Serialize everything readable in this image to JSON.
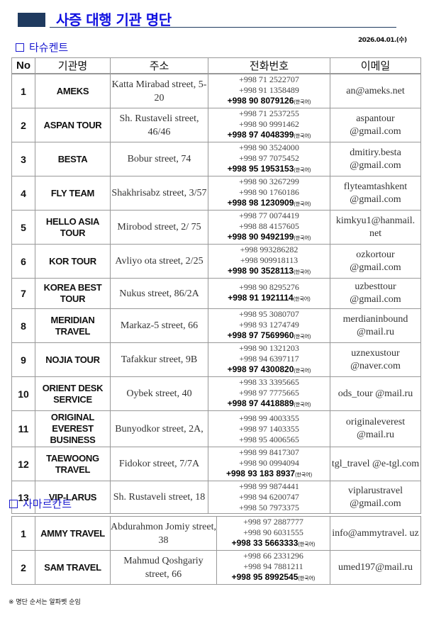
{
  "title": "사증 대행 기관 명단",
  "date": "2026.04.01.(수)",
  "headers": [
    "No",
    "기관명",
    "주소",
    "전화번호",
    "이메일"
  ],
  "korean_suffix": "(한국어)",
  "sections": [
    {
      "name": "타슈켄트",
      "rows": [
        {
          "no": "1",
          "name": "AMEKS",
          "address": "Katta Mirabad street, 5-20",
          "phones": [
            {
              "n": "+998 71 2522707"
            },
            {
              "n": "+998 91 1358489"
            },
            {
              "n": "+998 90 8079126",
              "korean": true
            }
          ],
          "email": "an@ameks.net"
        },
        {
          "no": "2",
          "name": "ASPAN TOUR",
          "address": "Sh. Rustaveli street, 46/46",
          "phones": [
            {
              "n": "+998 71 2537255"
            },
            {
              "n": "+998 90 9991462"
            },
            {
              "n": "+998 97 4048399",
              "korean": true
            }
          ],
          "email": "aspantour @gmail.com"
        },
        {
          "no": "3",
          "name": "BESTA",
          "address": "Bobur street, 74",
          "phones": [
            {
              "n": "+998 90 3524000"
            },
            {
              "n": "+998 97 7075452"
            },
            {
              "n": "+998 95 1953153",
              "korean": true
            }
          ],
          "email": "dmitiry.besta @gmail.com"
        },
        {
          "no": "4",
          "name": "FLY TEAM",
          "address": "Shakhrisabz street, 3/57",
          "phones": [
            {
              "n": "+998 90 3267299"
            },
            {
              "n": "+998 90 1760186"
            },
            {
              "n": "+998 98 1230909",
              "korean": true
            }
          ],
          "email": "flyteamtashkent @gmail.com"
        },
        {
          "no": "5",
          "name": "HELLO ASIA TOUR",
          "address": "Mirobod street, 2/ 75",
          "phones": [
            {
              "n": "+998 77 0074419"
            },
            {
              "n": "+998 88 4157605"
            },
            {
              "n": "+998 90 9492199",
              "korean": true
            }
          ],
          "email": "kimkyu1@hanmail. net"
        },
        {
          "no": "6",
          "name": "KOR TOUR",
          "address": "Avliyo ota street, 2/25",
          "phones": [
            {
              "n": "+998 993286282"
            },
            {
              "n": "+998 909918113"
            },
            {
              "n": "+998 90 3528113",
              "korean": true
            }
          ],
          "email": "ozkortour @gmail.com"
        },
        {
          "no": "7",
          "name": "KOREA BEST TOUR",
          "address": "Nukus street, 86/2A",
          "phones": [
            {
              "n": "+998 90 8295276"
            },
            {
              "n": "+998 91 1921114",
              "korean": true
            }
          ],
          "email": "uzbesttour @gmail.com"
        },
        {
          "no": "8",
          "name": "MERIDIAN TRAVEL",
          "address": "Markaz-5 street, 66",
          "phones": [
            {
              "n": "+998 95 3080707"
            },
            {
              "n": "+998 93 1274749"
            },
            {
              "n": "+998 97 7569960",
              "korean": true
            }
          ],
          "email": "merdianinbound @mail.ru"
        },
        {
          "no": "9",
          "name": "NOJIA TOUR",
          "address": "Tafakkur street, 9B",
          "phones": [
            {
              "n": "+998 90 1321203"
            },
            {
              "n": "+998 94 6397117"
            },
            {
              "n": "+998 97 4300820",
              "korean": true
            }
          ],
          "email": "uznexustour @naver.com"
        },
        {
          "no": "10",
          "name": "ORIENT DESK SERVICE",
          "address": "Oybek street, 40",
          "phones": [
            {
              "n": "+998 33 3395665"
            },
            {
              "n": "+998 97 7775665"
            },
            {
              "n": "+998 97 4418889",
              "korean": true
            }
          ],
          "email": "ods_tour @mail.ru"
        },
        {
          "no": "11",
          "name": "ORIGINAL EVEREST BUSINESS",
          "address": "Bunyodkor street, 2A,",
          "phones": [
            {
              "n": "+998 99 4003355"
            },
            {
              "n": "+998 97 1403355"
            },
            {
              "n": "+998 95 4006565"
            }
          ],
          "email": "originaleverest @mail.ru"
        },
        {
          "no": "12",
          "name": "TAEWOONG TRAVEL",
          "address": "Fidokor street, 7/7A",
          "phones": [
            {
              "n": "+998 99 8417307"
            },
            {
              "n": "+998 90 0994094"
            },
            {
              "n": "+998 93 183 8937",
              "korean": true
            }
          ],
          "email": "tgl_travel @e-tgl.com"
        },
        {
          "no": "13",
          "name": "VIP-LARUS",
          "address": "Sh. Rustaveli street, 18",
          "phones": [
            {
              "n": "+998 99 9874441"
            },
            {
              "n": "+998 94 6200747"
            },
            {
              "n": "+998 50 7973375"
            }
          ],
          "email": "viplarustravel @gmail.com"
        }
      ]
    },
    {
      "name": "사마르칸트",
      "rows": [
        {
          "no": "1",
          "name": "AMMY TRAVEL",
          "address": "Abdurahmon Jomiy street, 38",
          "phones": [
            {
              "n": "+998 97 2887777"
            },
            {
              "n": "+998 90 6031555"
            },
            {
              "n": "+998 33 5663333",
              "korean": true
            }
          ],
          "email": "info@ammytravel. uz"
        },
        {
          "no": "2",
          "name": "SAM TRAVEL",
          "address": "Mahmud Qoshgariy street, 66",
          "phones": [
            {
              "n": "+998 66 2331296"
            },
            {
              "n": "+998 94 7881211"
            },
            {
              "n": "+998 95 8992545",
              "korean": true
            }
          ],
          "email": "umed197@mail.ru"
        }
      ]
    }
  ],
  "note": "※ 명단 순서는 알파벳 순임",
  "colors": {
    "title": "#1010e0",
    "title_block": "#1f3a5f",
    "section": "#1a1ad0"
  }
}
